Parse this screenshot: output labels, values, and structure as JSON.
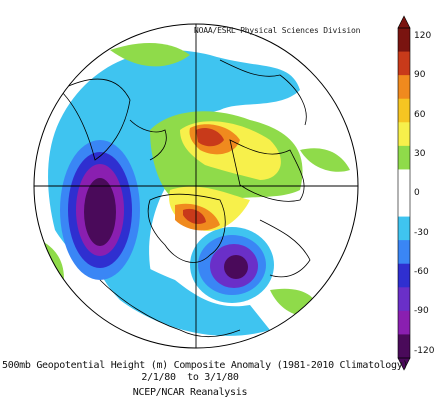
{
  "credit": "NOAA/ESRL Physical Sciences Division",
  "caption": {
    "line1": "500mb Geopotential Height (m) Composite Anomaly (1981-2010 Climatology)",
    "line2": "2/1/80  to 3/1/80",
    "line3": "NCEP/NCAR Reanalysis"
  },
  "colorbar": {
    "ticks": [
      "120",
      "90",
      "60",
      "30",
      "0",
      "-30",
      "-60",
      "-90",
      "-120"
    ],
    "colors": [
      "#7a1410",
      "#c83a1a",
      "#f08a1e",
      "#f6c522",
      "#f7f04b",
      "#8fdb4a",
      "#ffffff",
      "#ffffff",
      "#3fc4f0",
      "#3a86f5",
      "#2f2fd0",
      "#6a2fc8",
      "#8a1fb0",
      "#4a0a5a"
    ]
  }
}
